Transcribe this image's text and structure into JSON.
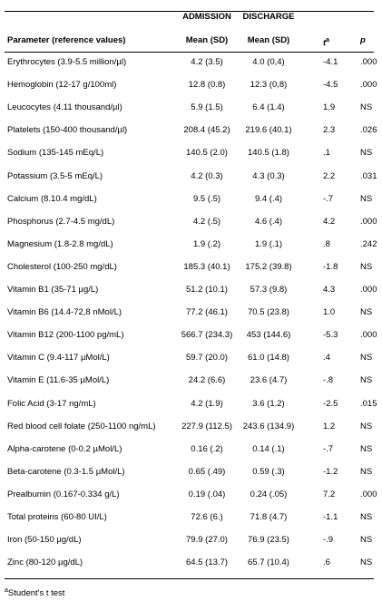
{
  "header": {
    "group_labels": [
      "ADMISSION",
      "DISCHARGE"
    ],
    "columns": [
      "Parameter (reference values)",
      "Mean (SD)",
      "Mean (SD)",
      {
        "text": "t",
        "sup": "a"
      },
      "p"
    ]
  },
  "table": {
    "rows": [
      [
        "Erythrocytes (3.9-5.5 million/µl)",
        "4.2 (3.5)",
        "4.0 (0,4)",
        "-4.1",
        ".000"
      ],
      [
        "Hemoglobin (12-17 g/100ml)",
        "12.8 (0.8)",
        "12.3 (0,8)",
        "-4.5",
        ".000"
      ],
      [
        "Leucocytes (4.11 thousand/µl)",
        "5.9 (1.5)",
        "6.4 (1.4)",
        "1.9",
        "NS"
      ],
      [
        "Platelets (150-400 thousand/µl)",
        "208.4 (45.2)",
        "219.6 (40.1)",
        "2.3",
        ".026"
      ],
      [
        "Sodium (135-145 mEq/L)",
        "140.5 (2.0)",
        "140.5 (1.8)",
        ".1",
        "NS"
      ],
      [
        "Potassium (3.5-5 mEq/L)",
        "4.2 (0.3)",
        "4.3 (0.3)",
        "2.2",
        ".031"
      ],
      [
        "Calcium (8.10.4 mg/dL)",
        "9.5 (.5)",
        "9.4 (.4)",
        "-.7",
        "NS"
      ],
      [
        "Phosphorus (2.7-4.5 mg/dL)",
        "4.2 (.5)",
        "4.6 (.4)",
        "4.2",
        ".000"
      ],
      [
        "Magnesium (1.8-2.8 mg/dL)",
        "1.9 (.2)",
        "1.9 (.1)",
        ".8",
        ".242"
      ],
      [
        "Cholesterol (100-250 mg/dL)",
        "185.3 (40.1)",
        "175.2 (39.8)",
        "-1.8",
        "NS"
      ],
      [
        "Vitamin B1 (35-71 µg/L)",
        "51.2 (10.1)",
        "57.3 (9.8)",
        "4.3",
        ".000"
      ],
      [
        "Vitamin B6 (14.4-72,8 nMol/L)",
        "77.2 (46.1)",
        "70.5 (23.8)",
        "1.0",
        "NS"
      ],
      [
        "Vitamin B12 (200-1100 pg/mL)",
        "566.7 (234.3)",
        "453 (144.6)",
        "-5.3",
        ".000"
      ],
      [
        "Vitamin C (9.4-117 µMol/L)",
        "59.7 (20.0)",
        "61.0 (14.8)",
        ".4",
        "NS"
      ],
      [
        "Vitamin E (11.6-35 µMol/L)",
        "24.2 (6.6)",
        "23.6 (4.7)",
        "-.8",
        "NS"
      ],
      [
        "Folic Acid (3-17 ng/mL)",
        "4.2 (1.9)",
        "3.6 (1.2)",
        "-2.5",
        ".015"
      ],
      [
        "Red blood cell folate (250-1100 ng/mL)",
        "227.9 (112.5)",
        "243.6 (134.9)",
        "1.2",
        "NS"
      ],
      [
        "Alpha-carotene (0-0.2 µMol/L)",
        "0.16 (.2)",
        "0.14 (.1)",
        "-.7",
        "NS"
      ],
      [
        "Beta-carotene (0.3-1.5 µMol/L)",
        "0.65 (.49)",
        "0.59 (.3)",
        "-1.2",
        "NS"
      ],
      [
        "Prealbumin (0.167-0.334 g/L)",
        "0.19 (.04)",
        "0.24 (.05)",
        "7.2",
        ".000"
      ],
      [
        "Total proteins (60-80 UI/L)",
        "72.6 (6.)",
        "71.8 (4.7)",
        "-1.1",
        "NS"
      ],
      [
        "Iron (50-150 µg/dL)",
        "79.9 (27.0)",
        "76.9 (23.5)",
        "-.9",
        "NS"
      ],
      [
        "Zinc (80-120 µg/dL)",
        "64.5 (13.7)",
        "65.7 (10.4)",
        ".6",
        "NS"
      ]
    ]
  },
  "footnote": {
    "sup": "a",
    "text": "Student's t test"
  }
}
